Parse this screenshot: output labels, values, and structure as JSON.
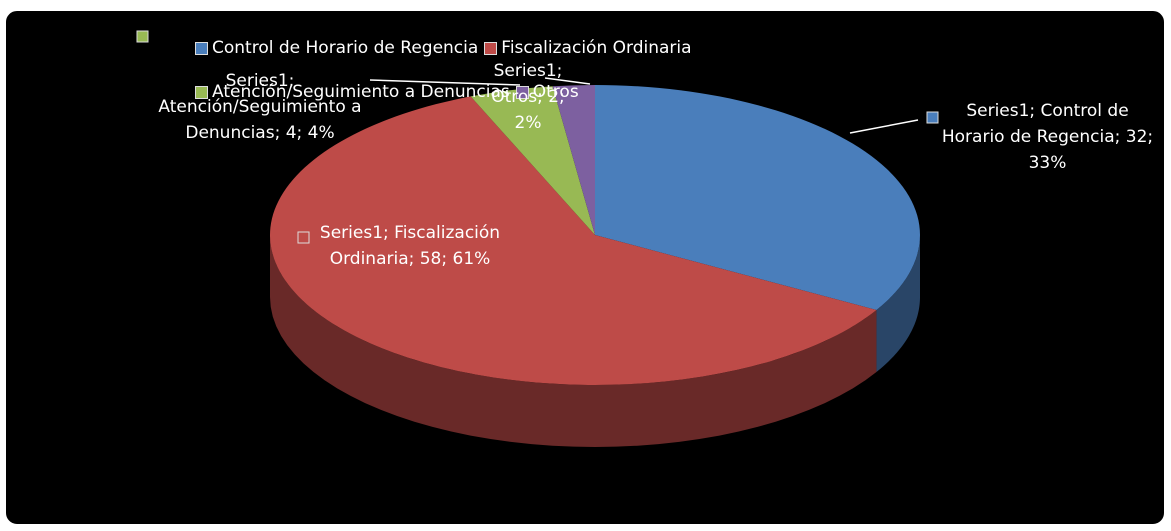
{
  "chart_data": {
    "type": "pie3d",
    "series_name": "Series1",
    "categories": [
      "Control de Horario de Regencia",
      "Fiscalización Ordinaria",
      "Atención/Seguimiento a Denuncias",
      "Otros"
    ],
    "values": [
      32,
      58,
      4,
      2
    ],
    "value_labels": [
      "Series1; Control de Horario de Regencia; 32; 33%",
      "Series1; Fiscalización Ordinaria; 58; 61%",
      "Series1; Atención/Seguimiento a Denuncias; 4; 4%",
      "Series1; Otros; 2; 2%"
    ],
    "colors": [
      "#4a7ebb",
      "#be4b48",
      "#98b954",
      "#7d60a0"
    ],
    "legend": "top"
  }
}
